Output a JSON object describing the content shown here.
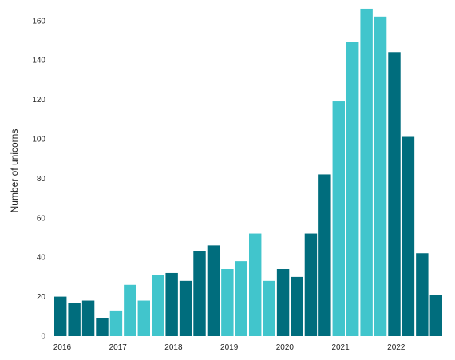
{
  "chart_data": {
    "type": "bar",
    "ylabel": "Number of unicorns",
    "ylim": [
      0,
      168
    ],
    "y_ticks": [
      0,
      20,
      40,
      60,
      80,
      100,
      120,
      140,
      160
    ],
    "x_tick_labels": [
      "2016",
      "2017",
      "2018",
      "2019",
      "2020",
      "2021",
      "2022"
    ],
    "grid": false,
    "bars_per_year": 4,
    "colors": {
      "dark": "#006d7d",
      "light": "#41c5cc"
    },
    "values": [
      20,
      17,
      18,
      9,
      13,
      26,
      18,
      31,
      32,
      28,
      43,
      46,
      34,
      38,
      52,
      28,
      34,
      30,
      52,
      82,
      119,
      149,
      166,
      162,
      144,
      101,
      42,
      21
    ],
    "shades": [
      "dark",
      "dark",
      "dark",
      "dark",
      "light",
      "light",
      "light",
      "light",
      "dark",
      "dark",
      "dark",
      "dark",
      "light",
      "light",
      "light",
      "light",
      "dark",
      "dark",
      "dark",
      "dark",
      "light",
      "light",
      "light",
      "light",
      "dark",
      "dark",
      "dark",
      "dark"
    ]
  }
}
